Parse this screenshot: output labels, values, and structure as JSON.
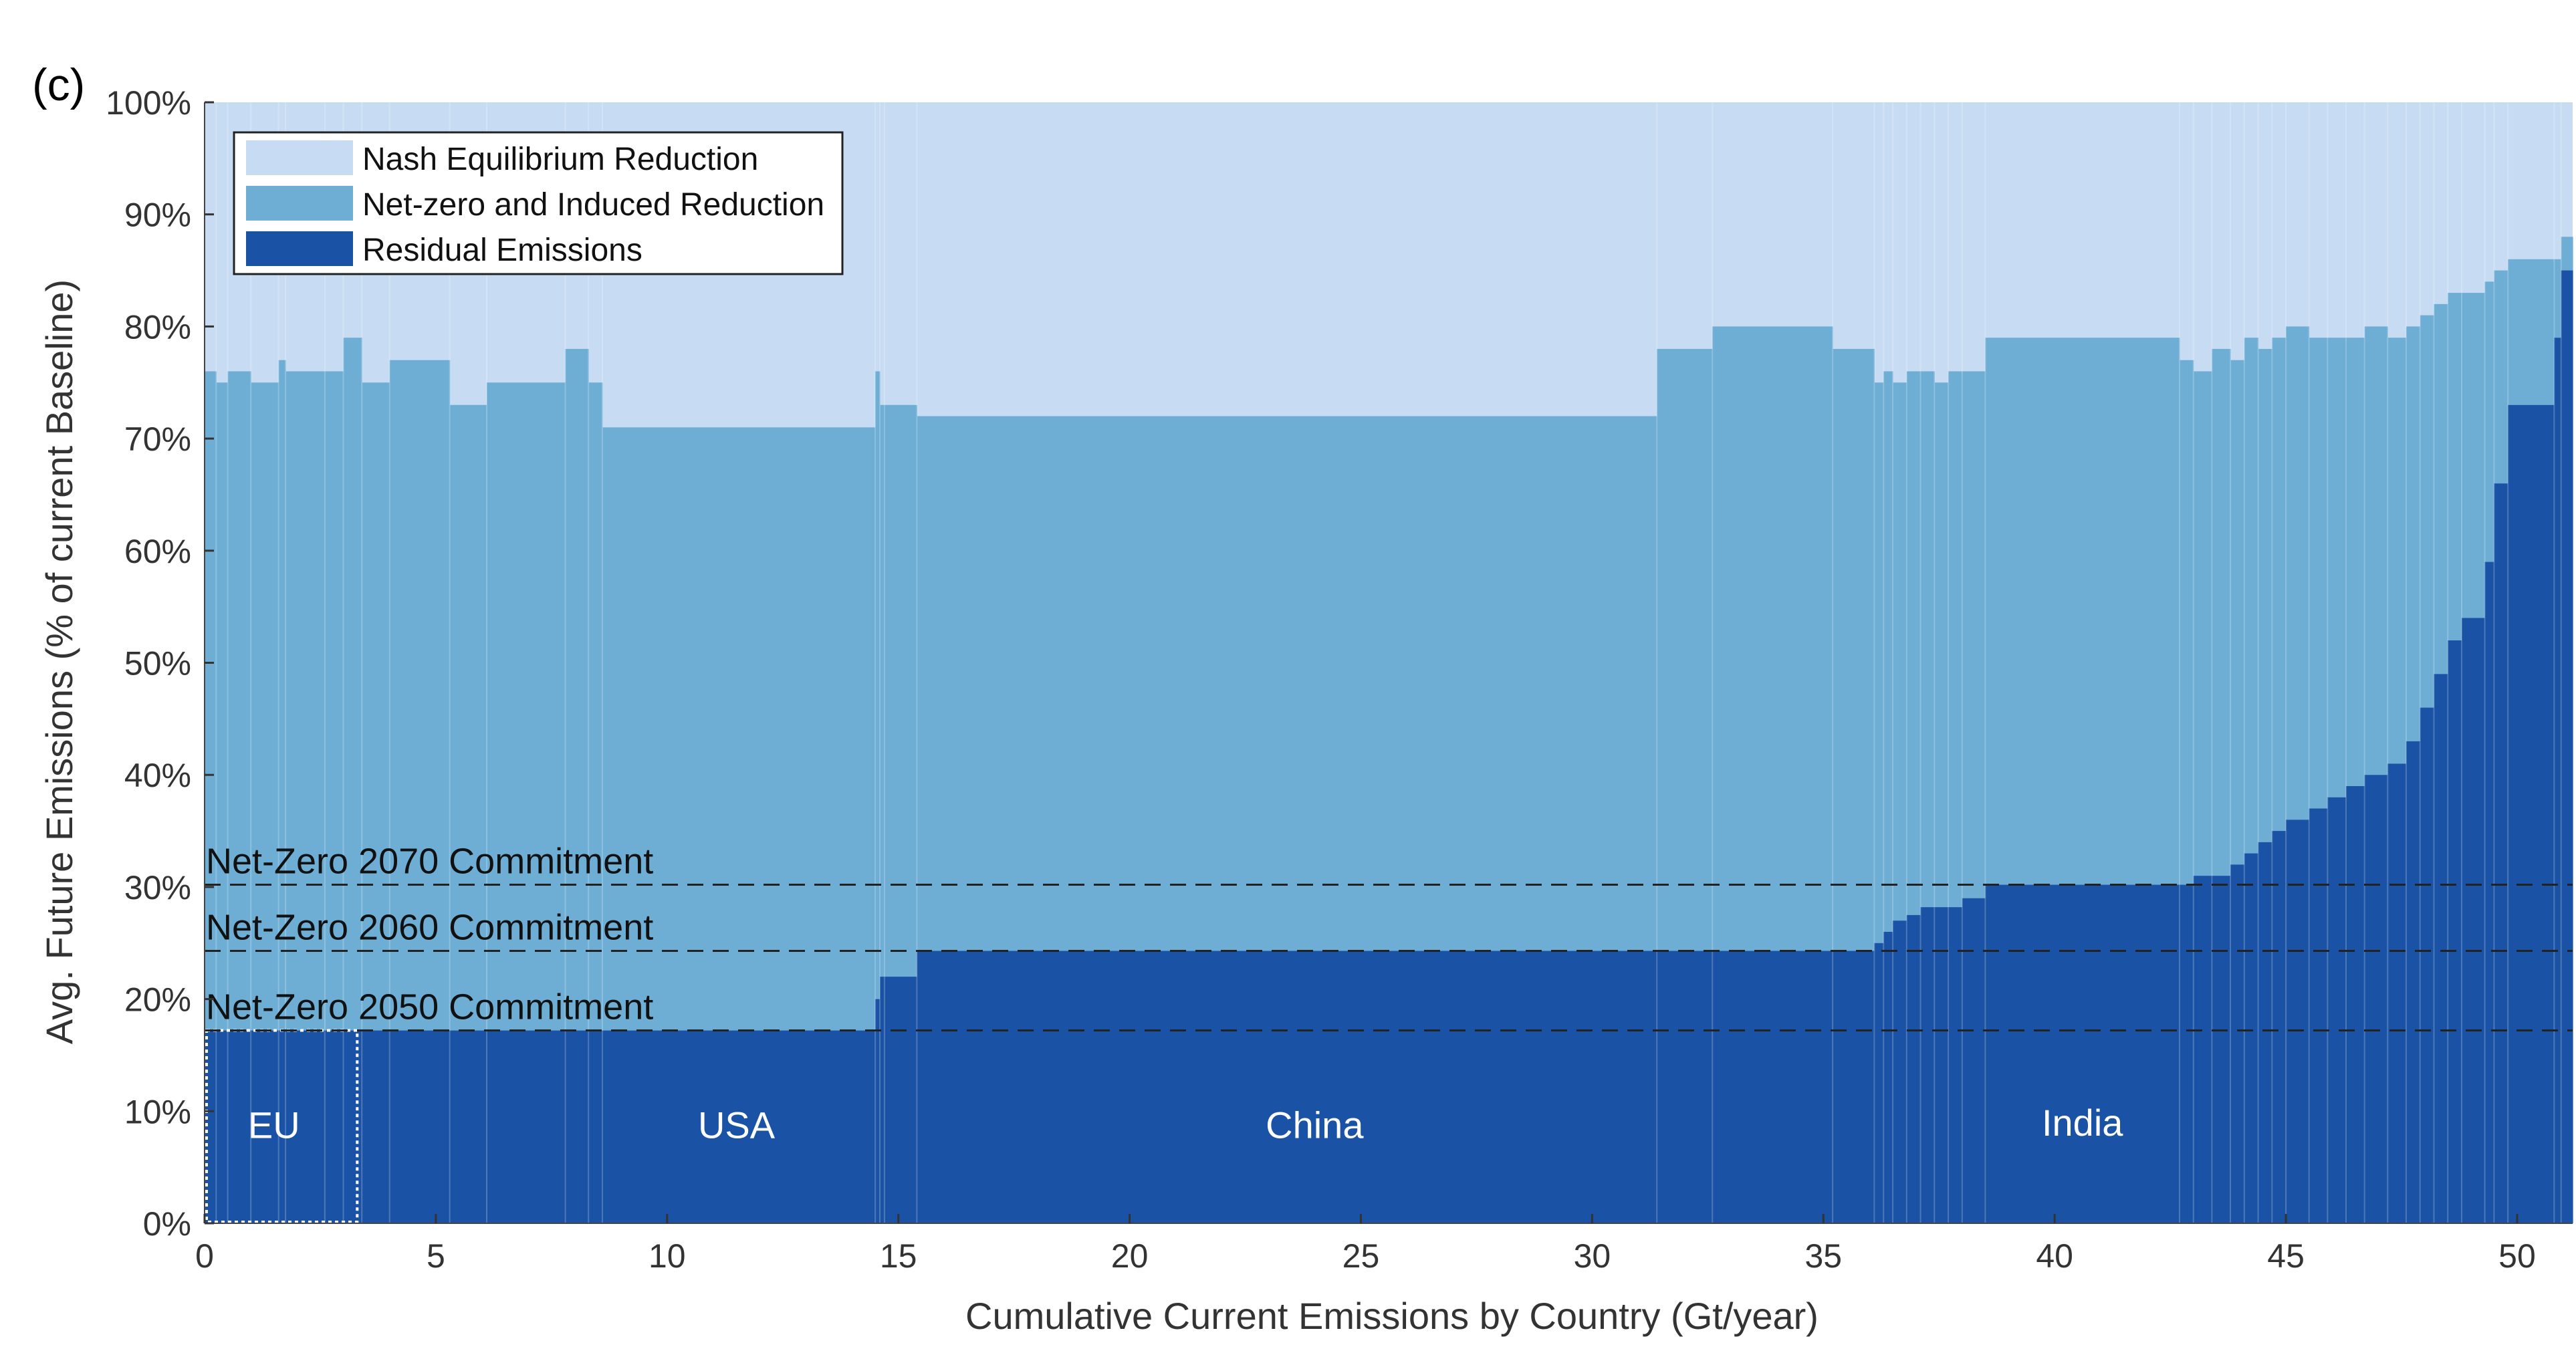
{
  "panel_label": "(c)",
  "colors": {
    "nash": "#c7dcf3",
    "netzero": "#6eaed5",
    "residual": "#1a52a5",
    "commitment_line": "#222222",
    "eu_box": "#ffffff"
  },
  "chart_data": {
    "type": "area",
    "xlabel": "Cumulative Current Emissions by Country (Gt/year)",
    "ylabel": "Avg. Future Emissions (% of current Baseline)",
    "xlim": [
      0,
      51.2
    ],
    "ylim": [
      0,
      100
    ],
    "x_ticks": [
      0,
      5,
      10,
      15,
      20,
      25,
      30,
      35,
      40,
      45,
      50
    ],
    "y_ticks": [
      0,
      10,
      20,
      30,
      40,
      50,
      60,
      70,
      80,
      90,
      100
    ],
    "y_tick_labels": [
      "0%",
      "10%",
      "20%",
      "30%",
      "40%",
      "50%",
      "60%",
      "70%",
      "80%",
      "90%",
      "100%"
    ],
    "grid": false,
    "legend_position": "top-left",
    "legend": [
      {
        "label": "Nash Equilibrium Reduction",
        "color_key": "nash"
      },
      {
        "label": "Net-zero and Induced Reduction",
        "color_key": "netzero"
      },
      {
        "label": "Residual Emissions",
        "color_key": "residual"
      }
    ],
    "reference_lines": [
      {
        "label": "Net-Zero 2070 Commitment",
        "y": 30.2
      },
      {
        "label": "Net-Zero 2060 Commitment",
        "y": 24.3
      },
      {
        "label": "Net-Zero 2050 Commitment",
        "y": 17.2
      }
    ],
    "region_labels": [
      {
        "label": "EU",
        "x": 1.5,
        "y": 8.5
      },
      {
        "label": "USA",
        "x": 11.5,
        "y": 8.5
      },
      {
        "label": "China",
        "x": 24.0,
        "y": 8.5
      },
      {
        "label": "India",
        "x": 40.6,
        "y": 8.7
      }
    ],
    "highlight_box": {
      "label": "EU",
      "x0": 0,
      "x1": 3.3,
      "y0": 0,
      "y1": 17.2
    },
    "series": [
      {
        "name": "Residual Emissions",
        "color_key": "residual"
      },
      {
        "name": "Net-zero and Induced Reduction",
        "color_key": "netzero"
      },
      {
        "name": "Nash Equilibrium Reduction",
        "color_key": "nash"
      }
    ],
    "segments": [
      {
        "x0": 0.0,
        "x1": 0.25,
        "residual": 17.2,
        "total": 76
      },
      {
        "x0": 0.25,
        "x1": 0.5,
        "residual": 17.2,
        "total": 75
      },
      {
        "x0": 0.5,
        "x1": 1.0,
        "residual": 17.2,
        "total": 76
      },
      {
        "x0": 1.0,
        "x1": 1.6,
        "residual": 17.2,
        "total": 75
      },
      {
        "x0": 1.6,
        "x1": 1.75,
        "residual": 17.2,
        "total": 77
      },
      {
        "x0": 1.75,
        "x1": 2.6,
        "residual": 17.2,
        "total": 76
      },
      {
        "x0": 2.6,
        "x1": 3.0,
        "residual": 17.2,
        "total": 76
      },
      {
        "x0": 3.0,
        "x1": 3.4,
        "residual": 17.2,
        "total": 79
      },
      {
        "x0": 3.4,
        "x1": 4.0,
        "residual": 17.2,
        "total": 75
      },
      {
        "x0": 4.0,
        "x1": 5.3,
        "residual": 17.2,
        "total": 77
      },
      {
        "x0": 5.3,
        "x1": 6.1,
        "residual": 17.2,
        "total": 73
      },
      {
        "x0": 6.1,
        "x1": 7.8,
        "residual": 17.2,
        "total": 75
      },
      {
        "x0": 7.8,
        "x1": 8.3,
        "residual": 17.2,
        "total": 78
      },
      {
        "x0": 8.3,
        "x1": 8.6,
        "residual": 17.2,
        "total": 75
      },
      {
        "x0": 8.6,
        "x1": 14.5,
        "residual": 17.2,
        "total": 71
      },
      {
        "x0": 14.5,
        "x1": 14.6,
        "residual": 20,
        "total": 76
      },
      {
        "x0": 14.6,
        "x1": 14.7,
        "residual": 22,
        "total": 73
      },
      {
        "x0": 14.7,
        "x1": 15.4,
        "residual": 22,
        "total": 73
      },
      {
        "x0": 15.4,
        "x1": 31.4,
        "residual": 24.3,
        "total": 72
      },
      {
        "x0": 31.4,
        "x1": 32.6,
        "residual": 24.3,
        "total": 78
      },
      {
        "x0": 32.6,
        "x1": 35.2,
        "residual": 24.3,
        "total": 80
      },
      {
        "x0": 35.2,
        "x1": 36.1,
        "residual": 24.3,
        "total": 78
      },
      {
        "x0": 36.1,
        "x1": 36.3,
        "residual": 25.0,
        "total": 75
      },
      {
        "x0": 36.3,
        "x1": 36.5,
        "residual": 26.0,
        "total": 76
      },
      {
        "x0": 36.5,
        "x1": 36.8,
        "residual": 27.0,
        "total": 75
      },
      {
        "x0": 36.8,
        "x1": 37.1,
        "residual": 27.5,
        "total": 76
      },
      {
        "x0": 37.1,
        "x1": 37.4,
        "residual": 28.2,
        "total": 76
      },
      {
        "x0": 37.4,
        "x1": 37.7,
        "residual": 28.2,
        "total": 75
      },
      {
        "x0": 37.7,
        "x1": 38.0,
        "residual": 28.2,
        "total": 76
      },
      {
        "x0": 38.0,
        "x1": 38.5,
        "residual": 29.0,
        "total": 76
      },
      {
        "x0": 38.5,
        "x1": 42.7,
        "residual": 30.2,
        "total": 79
      },
      {
        "x0": 42.7,
        "x1": 43.0,
        "residual": 30.2,
        "total": 77
      },
      {
        "x0": 43.0,
        "x1": 43.4,
        "residual": 31.0,
        "total": 76
      },
      {
        "x0": 43.4,
        "x1": 43.8,
        "residual": 31.0,
        "total": 78
      },
      {
        "x0": 43.8,
        "x1": 44.1,
        "residual": 32.0,
        "total": 77
      },
      {
        "x0": 44.1,
        "x1": 44.4,
        "residual": 33.0,
        "total": 79
      },
      {
        "x0": 44.4,
        "x1": 44.7,
        "residual": 34.0,
        "total": 78
      },
      {
        "x0": 44.7,
        "x1": 45.0,
        "residual": 35.0,
        "total": 79
      },
      {
        "x0": 45.0,
        "x1": 45.5,
        "residual": 36.0,
        "total": 80
      },
      {
        "x0": 45.5,
        "x1": 45.9,
        "residual": 37.0,
        "total": 79
      },
      {
        "x0": 45.9,
        "x1": 46.3,
        "residual": 38.0,
        "total": 79
      },
      {
        "x0": 46.3,
        "x1": 46.7,
        "residual": 39.0,
        "total": 79
      },
      {
        "x0": 46.7,
        "x1": 47.2,
        "residual": 40.0,
        "total": 80
      },
      {
        "x0": 47.2,
        "x1": 47.6,
        "residual": 41.0,
        "total": 79
      },
      {
        "x0": 47.6,
        "x1": 47.9,
        "residual": 43.0,
        "total": 80
      },
      {
        "x0": 47.9,
        "x1": 48.2,
        "residual": 46.0,
        "total": 81
      },
      {
        "x0": 48.2,
        "x1": 48.5,
        "residual": 49.0,
        "total": 82
      },
      {
        "x0": 48.5,
        "x1": 48.8,
        "residual": 52.0,
        "total": 83
      },
      {
        "x0": 48.8,
        "x1": 49.3,
        "residual": 54.0,
        "total": 83
      },
      {
        "x0": 49.3,
        "x1": 49.5,
        "residual": 59.0,
        "total": 84
      },
      {
        "x0": 49.5,
        "x1": 49.8,
        "residual": 66.0,
        "total": 85
      },
      {
        "x0": 49.8,
        "x1": 50.8,
        "residual": 73.0,
        "total": 86
      },
      {
        "x0": 50.8,
        "x1": 50.95,
        "residual": 79.0,
        "total": 86
      },
      {
        "x0": 50.95,
        "x1": 51.2,
        "residual": 85.0,
        "total": 88
      }
    ]
  }
}
